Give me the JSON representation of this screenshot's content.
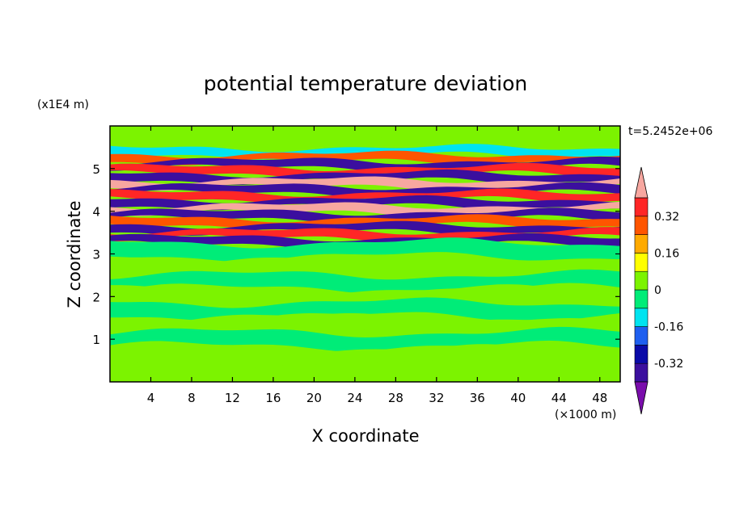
{
  "chart_data": {
    "type": "heatmap",
    "title": "potential temperature deviation",
    "xlabel": "X coordinate",
    "ylabel": "Z coordinate",
    "x_unit": "(×1000 m)",
    "y_unit": "(x1E4 m)",
    "time_label": "t=5.2452e+06",
    "xlim": [
      0,
      50
    ],
    "ylim": [
      0,
      6
    ],
    "x_ticks": [
      4,
      8,
      12,
      16,
      20,
      24,
      28,
      32,
      36,
      40,
      44,
      48
    ],
    "y_ticks": [
      1,
      2,
      3,
      4,
      5
    ],
    "x_tick_labels": [
      "4",
      "8",
      "12",
      "16",
      "20",
      "24",
      "28",
      "32",
      "36",
      "40",
      "44",
      "48"
    ],
    "y_tick_labels": [
      "1",
      "2",
      "3",
      "4",
      "5"
    ],
    "colorbar": {
      "levels": [
        -0.4,
        -0.32,
        -0.24,
        -0.16,
        -0.08,
        0,
        0.08,
        0.16,
        0.24,
        0.32,
        0.4
      ],
      "colors": [
        "#7a0dac",
        "#3b0f9e",
        "#0a0aa8",
        "#1e5ff0",
        "#00e4f0",
        "#00ec78",
        "#7cf300",
        "#ffff00",
        "#ffaa00",
        "#ff5500",
        "#ff2626",
        "#f7a7a0"
      ],
      "tick_labels": [
        "0.32",
        "0.16",
        "0",
        "-0.16",
        "-0.32"
      ],
      "tick_values": [
        0.32,
        0.16,
        0,
        -0.16,
        -0.32
      ]
    },
    "bands": [
      {
        "z": 0.2,
        "value": 0.02
      },
      {
        "z": 0.6,
        "value": 0.03
      },
      {
        "z": 1.0,
        "value": -0.03
      },
      {
        "z": 1.35,
        "value": 0.02
      },
      {
        "z": 1.7,
        "value": -0.02
      },
      {
        "z": 2.0,
        "value": 0.03
      },
      {
        "z": 2.35,
        "value": -0.02
      },
      {
        "z": 2.7,
        "value": 0.02
      },
      {
        "z": 3.1,
        "value": -0.03
      },
      {
        "z": 3.3,
        "value": -0.35
      },
      {
        "z": 3.45,
        "value": 0.35
      },
      {
        "z": 3.6,
        "value": -0.36
      },
      {
        "z": 3.75,
        "value": 0.3
      },
      {
        "z": 3.9,
        "value": -0.38
      },
      {
        "z": 4.05,
        "value": 0.4
      },
      {
        "z": 4.2,
        "value": -0.36
      },
      {
        "z": 4.35,
        "value": 0.34
      },
      {
        "z": 4.5,
        "value": -0.38
      },
      {
        "z": 4.65,
        "value": 0.4
      },
      {
        "z": 4.8,
        "value": -0.34
      },
      {
        "z": 4.95,
        "value": 0.38
      },
      {
        "z": 5.1,
        "value": -0.38
      },
      {
        "z": 5.25,
        "value": 0.3
      },
      {
        "z": 5.4,
        "value": -0.1
      },
      {
        "z": 5.7,
        "value": 0.03
      }
    ]
  }
}
